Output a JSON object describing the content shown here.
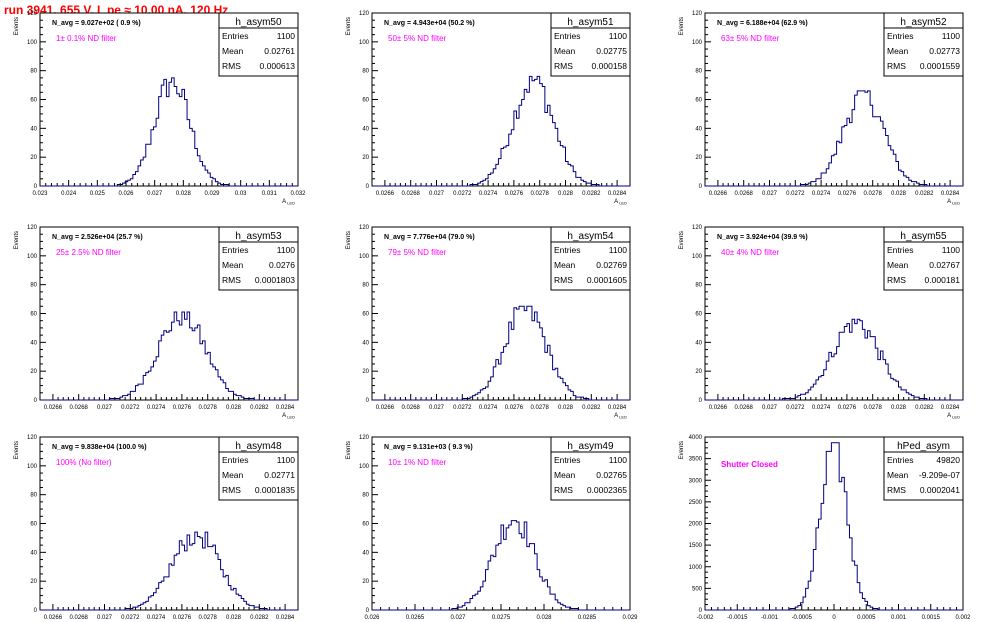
{
  "title": "run 3941,   655 V, I_pe ≈ 10.00 nA, 120 Hz",
  "colors": {
    "title": "#ff0000",
    "annotation": "#ff00ff",
    "line": "#000080",
    "axis": "#000000"
  },
  "stats_labels": {
    "entries": "Entries",
    "mean": "Mean",
    "rms": "RMS"
  },
  "chart_data": [
    {
      "type": "bar",
      "name": "h_asym50",
      "navg_text": "N_avg = 9.027e+02 ( 0.9 %)",
      "filter_text": "1± 0.1% ND filter",
      "stats": {
        "entries": "1100",
        "mean": "0.02761",
        "rms": "0.000613"
      },
      "ylabel": "Events",
      "xlabel": "A_LED",
      "xlim": [
        0.023,
        0.032
      ],
      "ylim": [
        0,
        120
      ],
      "xticks": [
        "0.023",
        "0.024",
        "0.025",
        "0.026",
        "0.027",
        "0.028",
        "0.029",
        "0.03",
        "0.031",
        "0.032"
      ],
      "yticks": [
        "0",
        "20",
        "40",
        "60",
        "80",
        "100",
        "120"
      ],
      "peak": 75,
      "center": 0.02761,
      "sigma": 0.000613
    },
    {
      "type": "bar",
      "name": "h_asym51",
      "navg_text": "N_avg = 4.943e+04 (50.2 %)",
      "filter_text": "50± 5% ND filter",
      "stats": {
        "entries": "1100",
        "mean": "0.02775",
        "rms": "0.000158"
      },
      "ylabel": "Events",
      "xlabel": "A_LED",
      "xlim": [
        0.0265,
        0.0285
      ],
      "ylim": [
        0,
        120
      ],
      "xticks": [
        "0.0266",
        "0.0268",
        "0.027",
        "0.0272",
        "0.0274",
        "0.0276",
        "0.0278",
        "0.028",
        "0.0282",
        "0.0284"
      ],
      "yticks": [
        "0",
        "20",
        "40",
        "60",
        "80",
        "100",
        "120"
      ],
      "peak": 76,
      "center": 0.02775,
      "sigma": 0.000158
    },
    {
      "type": "bar",
      "name": "h_asym52",
      "navg_text": "N_avg = 6.188e+04 (62.9 %)",
      "filter_text": "63± 5% ND filter",
      "stats": {
        "entries": "1100",
        "mean": "0.02773",
        "rms": "0.0001559"
      },
      "ylabel": "Events",
      "xlabel": "A_LED",
      "xlim": [
        0.0265,
        0.0285
      ],
      "ylim": [
        0,
        120
      ],
      "xticks": [
        "0.0266",
        "0.0268",
        "0.027",
        "0.0272",
        "0.0274",
        "0.0276",
        "0.0278",
        "0.028",
        "0.0282",
        "0.0284"
      ],
      "yticks": [
        "0",
        "20",
        "40",
        "60",
        "80",
        "100",
        "120"
      ],
      "peak": 66,
      "center": 0.02773,
      "sigma": 0.0001559
    },
    {
      "type": "bar",
      "name": "h_asym53",
      "navg_text": "N_avg = 2.526e+04 (25.7 %)",
      "filter_text": "25± 2.5% ND filter",
      "stats": {
        "entries": "1100",
        "mean": "0.0276",
        "rms": "0.0001803"
      },
      "ylabel": "Events",
      "xlabel": "A_LED",
      "xlim": [
        0.0265,
        0.0285
      ],
      "ylim": [
        0,
        120
      ],
      "xticks": [
        "0.0266",
        "0.0268",
        "0.027",
        "0.0272",
        "0.0274",
        "0.0276",
        "0.0278",
        "0.028",
        "0.0282",
        "0.0284"
      ],
      "yticks": [
        "0",
        "20",
        "40",
        "60",
        "80",
        "100",
        "120"
      ],
      "peak": 61,
      "center": 0.0276,
      "sigma": 0.0001803
    },
    {
      "type": "bar",
      "name": "h_asym54",
      "navg_text": "N_avg = 7.776e+04 (79.0 %)",
      "filter_text": "79± 5% ND filter",
      "stats": {
        "entries": "1100",
        "mean": "0.02769",
        "rms": "0.0001605"
      },
      "ylabel": "Events",
      "xlabel": "A_LED",
      "xlim": [
        0.0265,
        0.0285
      ],
      "ylim": [
        0,
        120
      ],
      "xticks": [
        "0.0266",
        "0.0268",
        "0.027",
        "0.0272",
        "0.0274",
        "0.0276",
        "0.0278",
        "0.028",
        "0.0282",
        "0.0284"
      ],
      "yticks": [
        "0",
        "20",
        "40",
        "60",
        "80",
        "100",
        "120"
      ],
      "peak": 65,
      "center": 0.02769,
      "sigma": 0.0001605
    },
    {
      "type": "bar",
      "name": "h_asym55",
      "navg_text": "N_avg = 3.924e+04 (39.9 %)",
      "filter_text": "40± 4% ND filter",
      "stats": {
        "entries": "1100",
        "mean": "0.02767",
        "rms": "0.000181"
      },
      "ylabel": "Events",
      "xlabel": "A_LED",
      "xlim": [
        0.0265,
        0.0285
      ],
      "ylim": [
        0,
        120
      ],
      "xticks": [
        "0.0266",
        "0.0268",
        "0.027",
        "0.0272",
        "0.0274",
        "0.0276",
        "0.0278",
        "0.028",
        "0.0282",
        "0.0284"
      ],
      "yticks": [
        "0",
        "20",
        "40",
        "60",
        "80",
        "100",
        "120"
      ],
      "peak": 56,
      "center": 0.02767,
      "sigma": 0.000181
    },
    {
      "type": "bar",
      "name": "h_asym48",
      "navg_text": "N_avg = 9.838e+04 (100.0 %)",
      "filter_text": "100% (No filter)",
      "stats": {
        "entries": "1100",
        "mean": "0.02771",
        "rms": "0.0001835"
      },
      "ylabel": "Events",
      "xlabel": "A_LED",
      "xlim": [
        0.0265,
        0.0285
      ],
      "ylim": [
        0,
        120
      ],
      "xticks": [
        "0.0266",
        "0.0268",
        "0.027",
        "0.0272",
        "0.0274",
        "0.0276",
        "0.0278",
        "0.028",
        "0.0282",
        "0.0284"
      ],
      "yticks": [
        "0",
        "20",
        "40",
        "60",
        "80",
        "100",
        "120"
      ],
      "peak": 54,
      "center": 0.02771,
      "sigma": 0.0001835
    },
    {
      "type": "bar",
      "name": "h_asym49",
      "navg_text": "N_avg = 9.131e+03 ( 9.3 %)",
      "filter_text": "10± 1% ND filter",
      "stats": {
        "entries": "1100",
        "mean": "0.02765",
        "rms": "0.0002365"
      },
      "ylabel": "Events",
      "xlabel": "A_LED",
      "xlim": [
        0.026,
        0.029
      ],
      "ylim": [
        0,
        120
      ],
      "xticks": [
        "0.026",
        "0.0265",
        "0.027",
        "0.0275",
        "0.028",
        "0.0285",
        "0.029"
      ],
      "yticks": [
        "0",
        "20",
        "40",
        "60",
        "80",
        "100",
        "120"
      ],
      "peak": 66,
      "center": 0.02765,
      "sigma": 0.0002365
    },
    {
      "type": "bar",
      "name": "hPed_asym",
      "navg_text": "",
      "filter_text": "Shutter Closed",
      "stats": {
        "entries": "49820",
        "mean": "-9.209e-07",
        "rms": "0.0002041"
      },
      "ylabel": "Events",
      "xlabel": "",
      "xlim": [
        -0.002,
        0.002
      ],
      "ylim": [
        0,
        4000
      ],
      "xticks": [
        "-0.002",
        "-0.0015",
        "-0.001",
        "-0.0005",
        "0",
        "0.0005",
        "0.001",
        "0.0015",
        "0.002"
      ],
      "yticks": [
        "0",
        "500",
        "1000",
        "1500",
        "2000",
        "2500",
        "3000",
        "3500",
        "4000"
      ],
      "peak": 3880,
      "center": 0,
      "sigma": 0.0002041
    }
  ]
}
